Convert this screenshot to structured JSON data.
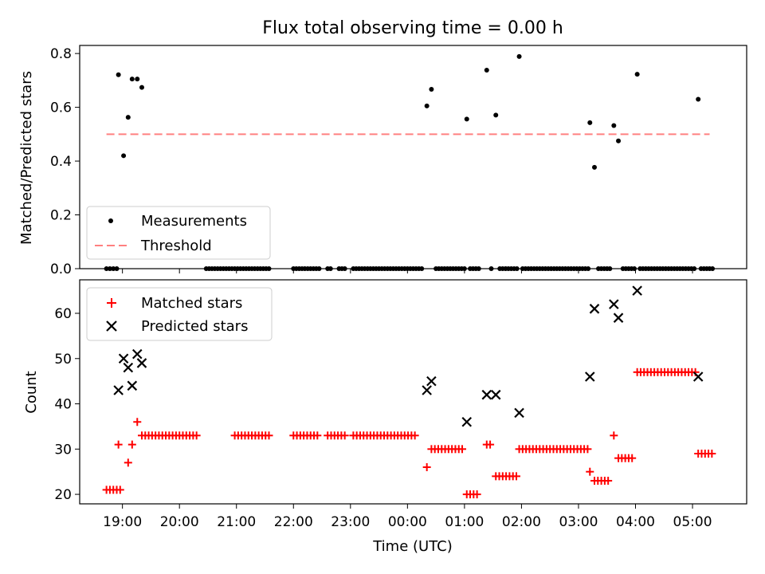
{
  "chart_data": [
    {
      "type": "scatter",
      "title": "Flux total observing time = 0.00 h",
      "ylabel": "Matched/Predicted stars",
      "xlabel": "",
      "xlim": [
        18.25,
        29.95
      ],
      "ylim": [
        0.0,
        0.83
      ],
      "yticks": [
        0.0,
        0.2,
        0.4,
        0.6,
        0.8
      ],
      "ytick_labels": [
        "0.0",
        "0.2",
        "0.4",
        "0.6",
        "0.8"
      ],
      "xticks": [
        19,
        20,
        21,
        22,
        23,
        24,
        25,
        26,
        27,
        28,
        29
      ],
      "legend_location": "lower-left",
      "series": [
        {
          "name": "Measurements",
          "marker": "dot",
          "color": "#000000",
          "points": [
            [
              18.93,
              0.721
            ],
            [
              19.02,
              0.42
            ],
            [
              19.1,
              0.563
            ],
            [
              19.17,
              0.705
            ],
            [
              19.26,
              0.705
            ],
            [
              19.34,
              0.674
            ],
            [
              24.34,
              0.605
            ],
            [
              24.42,
              0.667
            ],
            [
              25.04,
              0.556
            ],
            [
              25.39,
              0.738
            ],
            [
              25.55,
              0.571
            ],
            [
              25.96,
              0.789
            ],
            [
              27.2,
              0.543
            ],
            [
              27.28,
              0.377
            ],
            [
              27.62,
              0.532
            ],
            [
              27.7,
              0.475
            ],
            [
              28.03,
              0.723
            ],
            [
              29.1,
              0.63
            ]
          ],
          "zero_x": [
            18.72,
            18.78,
            18.84,
            18.9,
            20.47,
            20.52,
            20.57,
            20.62,
            20.67,
            20.72,
            20.77,
            20.82,
            20.87,
            20.92,
            20.97,
            21.02,
            21.07,
            21.12,
            21.17,
            21.22,
            21.27,
            21.32,
            21.37,
            21.42,
            21.47,
            21.52,
            21.57,
            22.0,
            22.05,
            22.1,
            22.15,
            22.2,
            22.25,
            22.3,
            22.35,
            22.4,
            22.45,
            22.6,
            22.65,
            22.8,
            22.85,
            22.9,
            23.05,
            23.1,
            23.15,
            23.2,
            23.25,
            23.3,
            23.35,
            23.4,
            23.45,
            23.5,
            23.55,
            23.6,
            23.65,
            23.7,
            23.75,
            23.8,
            23.85,
            23.9,
            23.95,
            24.0,
            24.05,
            24.1,
            24.15,
            24.2,
            24.25,
            24.5,
            24.55,
            24.6,
            24.65,
            24.7,
            24.75,
            24.8,
            24.85,
            24.9,
            24.95,
            25.0,
            25.1,
            25.15,
            25.2,
            25.25,
            25.47,
            25.62,
            25.67,
            25.72,
            25.77,
            25.82,
            25.87,
            25.92,
            26.02,
            26.07,
            26.12,
            26.17,
            26.22,
            26.27,
            26.32,
            26.37,
            26.42,
            26.47,
            26.52,
            26.57,
            26.62,
            26.67,
            26.72,
            26.77,
            26.82,
            26.87,
            26.92,
            26.97,
            27.02,
            27.07,
            27.12,
            27.17,
            27.35,
            27.4,
            27.45,
            27.5,
            27.55,
            27.78,
            27.83,
            27.88,
            27.93,
            27.98,
            28.08,
            28.13,
            28.18,
            28.23,
            28.28,
            28.33,
            28.38,
            28.43,
            28.48,
            28.53,
            28.58,
            28.63,
            28.68,
            28.73,
            28.78,
            28.83,
            28.88,
            28.93,
            28.98,
            29.03,
            29.15,
            29.2,
            29.25,
            29.3,
            29.35
          ]
        },
        {
          "name": "Threshold",
          "style": "dashed",
          "color": "#ff8080",
          "x": [
            18.72,
            29.3
          ],
          "y": [
            0.5,
            0.5
          ]
        }
      ]
    },
    {
      "type": "scatter",
      "title": "",
      "ylabel": "Count",
      "xlabel": "Time (UTC)",
      "xlim": [
        18.25,
        29.95
      ],
      "ylim": [
        17.9,
        67.4
      ],
      "yticks": [
        20,
        30,
        40,
        50,
        60
      ],
      "ytick_labels": [
        "20",
        "30",
        "40",
        "50",
        "60"
      ],
      "xticks": [
        19,
        20,
        21,
        22,
        23,
        24,
        25,
        26,
        27,
        28,
        29
      ],
      "xtick_labels": [
        "19:00",
        "20:00",
        "21:00",
        "22:00",
        "23:00",
        "00:00",
        "01:00",
        "02:00",
        "03:00",
        "04:00",
        "05:00"
      ],
      "legend_location": "upper-left",
      "series": [
        {
          "name": "Matched stars",
          "marker": "plus",
          "color": "#ff0000",
          "runs": [
            {
              "x0": 18.72,
              "step": 0.06,
              "count": 5,
              "y": 21
            },
            {
              "x0": 18.93,
              "step": 0.06,
              "count": 1,
              "y": 31
            },
            {
              "x0": 19.1,
              "step": 0.06,
              "count": 1,
              "y": 27
            },
            {
              "x0": 19.17,
              "step": 0.06,
              "count": 1,
              "y": 31
            },
            {
              "x0": 19.26,
              "step": 0.06,
              "count": 1,
              "y": 36
            },
            {
              "x0": 19.34,
              "step": 0.06,
              "count": 17,
              "y": 33
            },
            {
              "x0": 20.97,
              "step": 0.06,
              "count": 11,
              "y": 33
            },
            {
              "x0": 22.0,
              "step": 0.06,
              "count": 8,
              "y": 33
            },
            {
              "x0": 22.6,
              "step": 0.06,
              "count": 6,
              "y": 33
            },
            {
              "x0": 23.05,
              "step": 0.06,
              "count": 19,
              "y": 33
            },
            {
              "x0": 24.34,
              "step": 0.06,
              "count": 1,
              "y": 26
            },
            {
              "x0": 24.42,
              "step": 0.06,
              "count": 10,
              "y": 30
            },
            {
              "x0": 25.04,
              "step": 0.06,
              "count": 4,
              "y": 20
            },
            {
              "x0": 25.39,
              "step": 0.06,
              "count": 2,
              "y": 31
            },
            {
              "x0": 25.55,
              "step": 0.06,
              "count": 7,
              "y": 24
            },
            {
              "x0": 25.96,
              "step": 0.06,
              "count": 21,
              "y": 30
            },
            {
              "x0": 27.2,
              "step": 0.06,
              "count": 1,
              "y": 25
            },
            {
              "x0": 27.28,
              "step": 0.06,
              "count": 5,
              "y": 23
            },
            {
              "x0": 27.62,
              "step": 0.06,
              "count": 1,
              "y": 33
            },
            {
              "x0": 27.7,
              "step": 0.06,
              "count": 5,
              "y": 28
            },
            {
              "x0": 28.03,
              "step": 0.06,
              "count": 18,
              "y": 47
            },
            {
              "x0": 29.1,
              "step": 0.06,
              "count": 5,
              "y": 29
            }
          ]
        },
        {
          "name": "Predicted stars",
          "marker": "x",
          "color": "#000000",
          "points": [
            [
              18.93,
              43
            ],
            [
              19.02,
              50
            ],
            [
              19.1,
              48
            ],
            [
              19.17,
              44
            ],
            [
              19.26,
              51
            ],
            [
              19.34,
              49
            ],
            [
              24.34,
              43
            ],
            [
              24.42,
              45
            ],
            [
              25.04,
              36
            ],
            [
              25.39,
              42
            ],
            [
              25.55,
              42
            ],
            [
              25.96,
              38
            ],
            [
              27.2,
              46
            ],
            [
              27.28,
              61
            ],
            [
              27.62,
              62
            ],
            [
              27.7,
              59
            ],
            [
              28.03,
              65
            ],
            [
              29.1,
              46
            ]
          ]
        }
      ]
    }
  ]
}
